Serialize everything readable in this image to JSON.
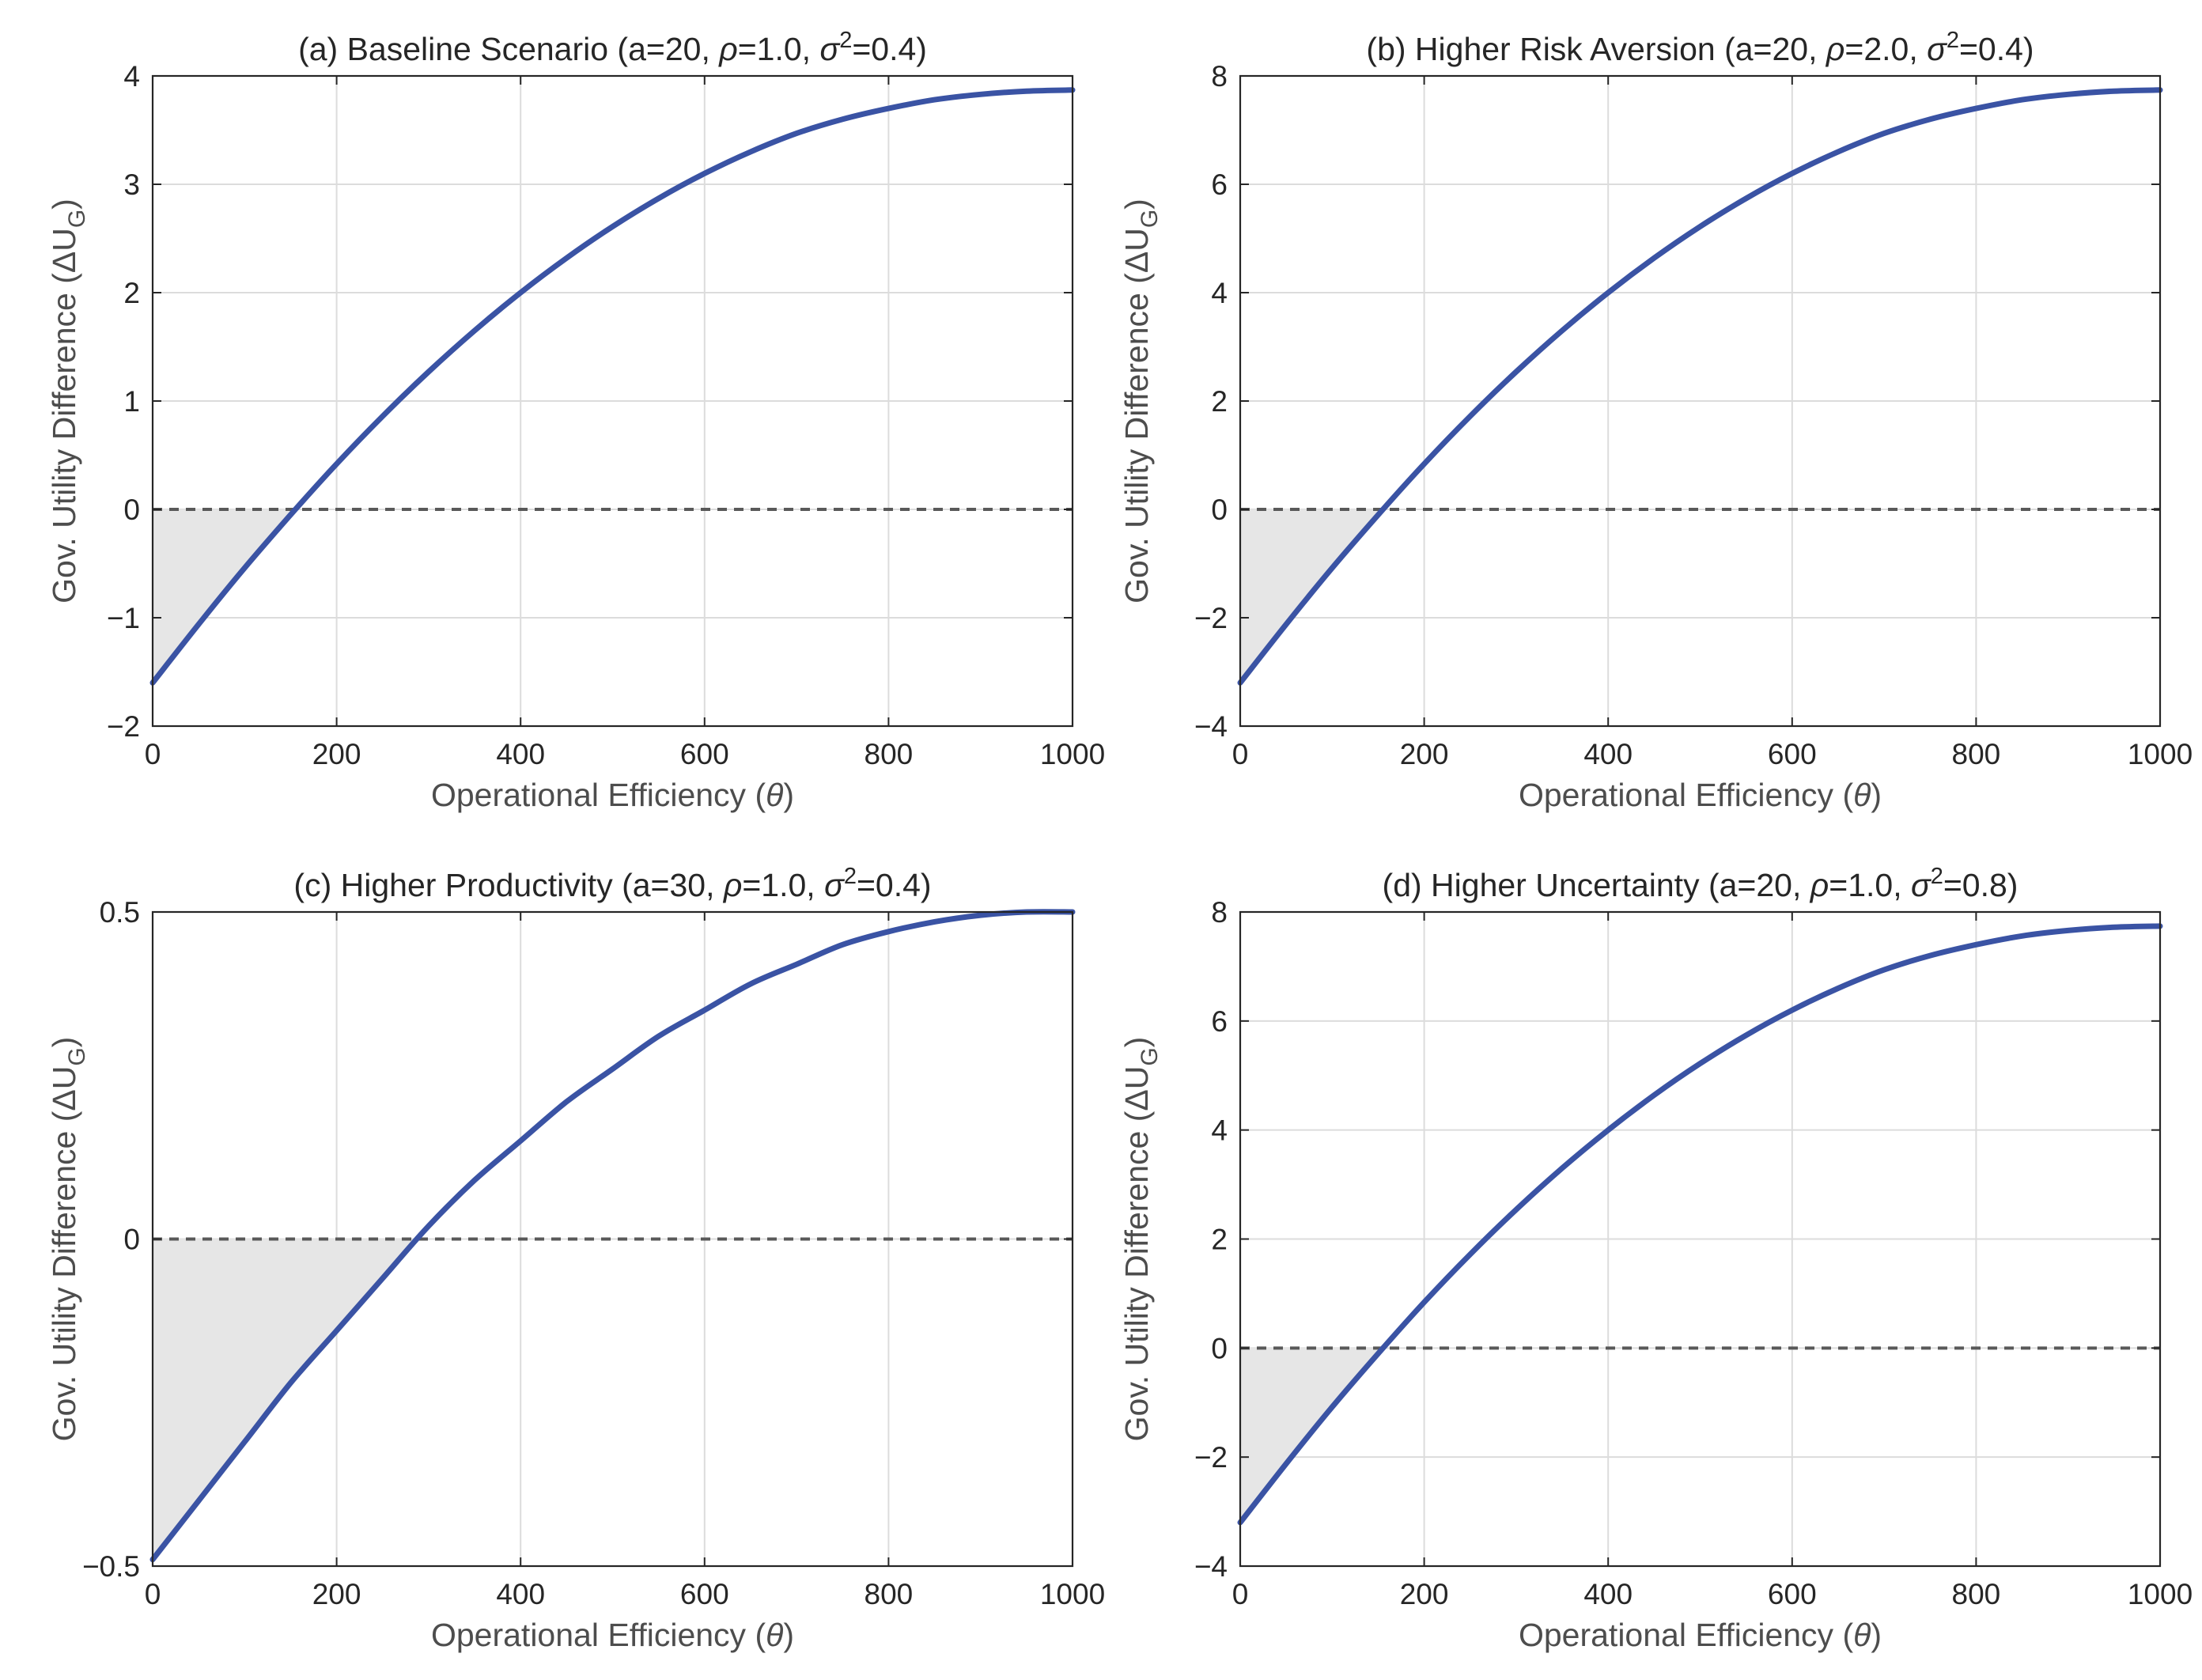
{
  "figure": {
    "xlabel_text": "Operational Efficiency (",
    "xlabel_symbol": "θ",
    "xlabel_close": ")",
    "ylabel_text": "Gov. Utility Difference (ΔU",
    "ylabel_sub": "G",
    "ylabel_close": ")",
    "colors": {
      "curve": "#3A53A4",
      "shade": "#e6e6e6",
      "zero_line": "#595959",
      "grid": "#dcdcdc"
    }
  },
  "chart_data": [
    {
      "type": "line",
      "title": "(a) Baseline Scenario (a=20, ρ=1.0, σ²=0.4)",
      "title_parts": {
        "pre": "(a) Baseline Scenario (a=20, ",
        "rho": "ρ",
        "mid": "=1.0, ",
        "sigma": "σ",
        "sup": "2",
        "post": "=0.4)"
      },
      "xlim": [
        0,
        1000
      ],
      "ylim": [
        -2,
        4
      ],
      "xticks": [
        0,
        200,
        400,
        600,
        800,
        1000
      ],
      "yticks": [
        -2,
        -1,
        0,
        1,
        2,
        3,
        4
      ],
      "ytick_labels": [
        "−2",
        "−1",
        "0",
        "1",
        "2",
        "3",
        "4"
      ],
      "series": [
        {
          "x": [
            0,
            50,
            100,
            150,
            200,
            250,
            300,
            350,
            400,
            450,
            500,
            550,
            600,
            650,
            700,
            750,
            800,
            850,
            900,
            950,
            1000
          ],
          "y": [
            -1.6,
            -1.06,
            -0.54,
            -0.05,
            0.42,
            0.86,
            1.27,
            1.65,
            2.0,
            2.32,
            2.61,
            2.87,
            3.1,
            3.3,
            3.47,
            3.6,
            3.7,
            3.78,
            3.83,
            3.86,
            3.87
          ]
        }
      ],
      "zero_crossing": 175,
      "grid": true
    },
    {
      "type": "line",
      "title": "(b) Higher Risk Aversion (a=20, ρ=2.0, σ²=0.4)",
      "title_parts": {
        "pre": "(b) Higher Risk Aversion (a=20, ",
        "rho": "ρ",
        "mid": "=2.0, ",
        "sigma": "σ",
        "sup": "2",
        "post": "=0.4)"
      },
      "xlim": [
        0,
        1000
      ],
      "ylim": [
        -4,
        8
      ],
      "xticks": [
        0,
        200,
        400,
        600,
        800,
        1000
      ],
      "yticks": [
        -4,
        -2,
        0,
        2,
        4,
        6,
        8
      ],
      "ytick_labels": [
        "−4",
        "−2",
        "0",
        "2",
        "4",
        "6",
        "8"
      ],
      "series": [
        {
          "x": [
            0,
            50,
            100,
            150,
            200,
            250,
            300,
            350,
            400,
            450,
            500,
            550,
            600,
            650,
            700,
            750,
            800,
            850,
            900,
            950,
            1000
          ],
          "y": [
            -3.2,
            -2.12,
            -1.08,
            -0.1,
            0.84,
            1.72,
            2.54,
            3.3,
            4.0,
            4.64,
            5.22,
            5.74,
            6.2,
            6.6,
            6.94,
            7.2,
            7.4,
            7.56,
            7.66,
            7.72,
            7.74
          ]
        }
      ],
      "zero_crossing": 175,
      "grid": true
    },
    {
      "type": "line",
      "title": "(c) Higher Productivity (a=30, ρ=1.0, σ²=0.4)",
      "title_parts": {
        "pre": "(c) Higher Productivity (a=30, ",
        "rho": "ρ",
        "mid": "=1.0, ",
        "sigma": "σ",
        "sup": "2",
        "post": "=0.4)"
      },
      "xlim": [
        0,
        1000
      ],
      "ylim": [
        -0.5,
        0.5
      ],
      "xticks": [
        0,
        200,
        400,
        600,
        800,
        1000
      ],
      "yticks": [
        -0.5,
        0,
        0.5
      ],
      "ytick_labels": [
        "−0.5",
        "0",
        "0.5"
      ],
      "series": [
        {
          "x": [
            0,
            50,
            100,
            150,
            200,
            250,
            300,
            350,
            400,
            450,
            500,
            550,
            600,
            650,
            700,
            750,
            800,
            850,
            900,
            950,
            1000
          ],
          "y": [
            -0.49,
            -0.4,
            -0.31,
            -0.22,
            -0.14,
            -0.06,
            0.02,
            0.09,
            0.15,
            0.21,
            0.26,
            0.31,
            0.35,
            0.39,
            0.42,
            0.45,
            0.47,
            0.485,
            0.495,
            0.5,
            0.5
          ]
        }
      ],
      "zero_crossing": 285,
      "grid": true
    },
    {
      "type": "line",
      "title": "(d) Higher Uncertainty (a=20, ρ=1.0, σ²=0.8)",
      "title_parts": {
        "pre": "(d) Higher Uncertainty (a=20, ",
        "rho": "ρ",
        "mid": "=1.0, ",
        "sigma": "σ",
        "sup": "2",
        "post": "=0.8)"
      },
      "xlim": [
        0,
        1000
      ],
      "ylim": [
        -4,
        8
      ],
      "xticks": [
        0,
        200,
        400,
        600,
        800,
        1000
      ],
      "yticks": [
        -4,
        -2,
        0,
        2,
        4,
        6,
        8
      ],
      "ytick_labels": [
        "−4",
        "−2",
        "0",
        "2",
        "4",
        "6",
        "8"
      ],
      "series": [
        {
          "x": [
            0,
            50,
            100,
            150,
            200,
            250,
            300,
            350,
            400,
            450,
            500,
            550,
            600,
            650,
            700,
            750,
            800,
            850,
            900,
            950,
            1000
          ],
          "y": [
            -3.2,
            -2.12,
            -1.08,
            -0.1,
            0.84,
            1.72,
            2.54,
            3.3,
            4.0,
            4.64,
            5.22,
            5.74,
            6.2,
            6.6,
            6.94,
            7.2,
            7.4,
            7.56,
            7.66,
            7.72,
            7.74
          ]
        }
      ],
      "zero_crossing": 175,
      "grid": true
    }
  ]
}
